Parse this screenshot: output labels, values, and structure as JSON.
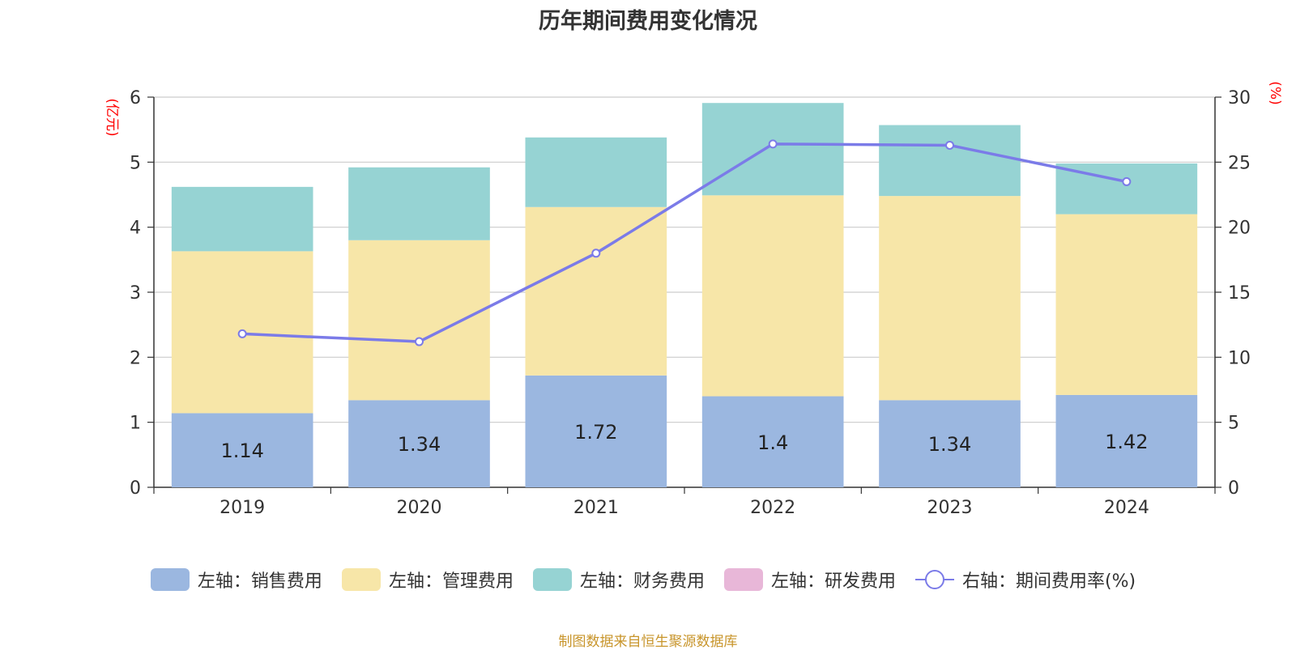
{
  "chart_data": {
    "type": "bar",
    "title": "历年期间费用变化情况",
    "categories": [
      "2019",
      "2020",
      "2021",
      "2022",
      "2023",
      "2024"
    ],
    "left_axis": {
      "unit_label": "(亿元)",
      "ylim": [
        0,
        6
      ],
      "ticks": [
        "0",
        "1",
        "2",
        "3",
        "4",
        "5",
        "6"
      ]
    },
    "right_axis": {
      "unit_label": "(%)",
      "ylim": [
        0,
        30
      ],
      "ticks": [
        "0",
        "5",
        "10",
        "15",
        "20",
        "25",
        "30"
      ]
    },
    "series": [
      {
        "name": "左轴：销售费用",
        "type": "bar",
        "axis": "left",
        "color": "#9bb7e0",
        "values": [
          1.14,
          1.34,
          1.72,
          1.4,
          1.34,
          1.42
        ],
        "labels": [
          "1.14",
          "1.34",
          "1.72",
          "1.4",
          "1.34",
          "1.42"
        ]
      },
      {
        "name": "左轴：管理费用",
        "type": "bar",
        "axis": "left",
        "color": "#f7e6a8",
        "values": [
          2.49,
          2.46,
          2.59,
          3.09,
          3.14,
          2.78
        ]
      },
      {
        "name": "左轴：财务费用",
        "type": "bar",
        "axis": "left",
        "color": "#96d3d3",
        "values": [
          0.99,
          1.12,
          1.07,
          1.42,
          1.09,
          0.78
        ]
      },
      {
        "name": "左轴：研发费用",
        "type": "bar",
        "axis": "left",
        "color": "#e8b7d8",
        "values": [
          0,
          0,
          0,
          0,
          0,
          0
        ]
      },
      {
        "name": "右轴：期间费用率(%)",
        "type": "line",
        "axis": "right",
        "color": "#7b7be8",
        "values": [
          11.8,
          11.2,
          18.0,
          26.4,
          26.3,
          23.5
        ]
      }
    ],
    "grid": true,
    "legend_position": "bottom"
  },
  "source_text": "制图数据来自恒生聚源数据库"
}
